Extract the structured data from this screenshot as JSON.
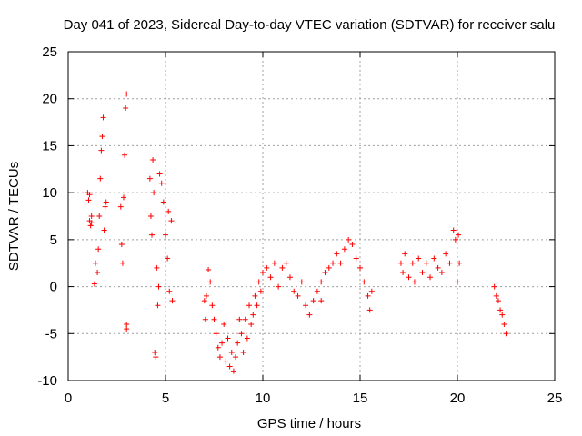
{
  "chart_data": {
    "type": "scatter",
    "title": "Day 041 of 2023, Sidereal Day-to-day VTEC variation (SDTVAR) for receiver salu",
    "xlabel": "GPS time / hours",
    "ylabel": "SDTVAR / TECUs",
    "xlim": [
      0,
      25
    ],
    "ylim": [
      -10,
      25
    ],
    "xticks": [
      "0",
      "5",
      "10",
      "15",
      "20",
      "25"
    ],
    "yticks": [
      "-10",
      "-5",
      "0",
      "5",
      "10",
      "15",
      "20",
      "25"
    ],
    "grid": true,
    "marker": "+",
    "color": "#ff0000",
    "series": [
      {
        "name": "SDTVAR",
        "values": [
          [
            1.0,
            10.0
          ],
          [
            1.05,
            9.2
          ],
          [
            1.1,
            9.8
          ],
          [
            1.1,
            7.0
          ],
          [
            1.15,
            6.5
          ],
          [
            1.2,
            6.8
          ],
          [
            1.2,
            7.5
          ],
          [
            1.35,
            0.3
          ],
          [
            1.4,
            2.5
          ],
          [
            1.5,
            1.5
          ],
          [
            1.55,
            4.0
          ],
          [
            1.6,
            7.5
          ],
          [
            1.65,
            11.5
          ],
          [
            1.7,
            14.5
          ],
          [
            1.75,
            16.0
          ],
          [
            1.8,
            18.0
          ],
          [
            1.85,
            6.0
          ],
          [
            1.9,
            8.5
          ],
          [
            1.95,
            9.0
          ],
          [
            2.7,
            8.5
          ],
          [
            2.75,
            4.5
          ],
          [
            2.8,
            2.5
          ],
          [
            2.85,
            9.5
          ],
          [
            2.9,
            14.0
          ],
          [
            2.95,
            19.0
          ],
          [
            3.0,
            20.5
          ],
          [
            3.0,
            -4.5
          ],
          [
            3.0,
            -4.0
          ],
          [
            4.2,
            11.5
          ],
          [
            4.25,
            7.5
          ],
          [
            4.3,
            5.5
          ],
          [
            4.35,
            13.5
          ],
          [
            4.4,
            10.0
          ],
          [
            4.45,
            -7.0
          ],
          [
            4.5,
            -7.5
          ],
          [
            4.55,
            2.0
          ],
          [
            4.6,
            -2.0
          ],
          [
            4.65,
            0.0
          ],
          [
            4.7,
            12.0
          ],
          [
            4.8,
            11.0
          ],
          [
            4.9,
            9.0
          ],
          [
            5.0,
            5.5
          ],
          [
            5.1,
            3.0
          ],
          [
            5.15,
            8.0
          ],
          [
            5.2,
            -0.5
          ],
          [
            5.3,
            7.0
          ],
          [
            5.35,
            -1.5
          ],
          [
            7.0,
            -1.5
          ],
          [
            7.05,
            -3.5
          ],
          [
            7.1,
            -1.0
          ],
          [
            7.2,
            1.8
          ],
          [
            7.3,
            0.5
          ],
          [
            7.4,
            -2.0
          ],
          [
            7.5,
            -3.5
          ],
          [
            7.6,
            -5.0
          ],
          [
            7.7,
            -6.5
          ],
          [
            7.8,
            -7.5
          ],
          [
            7.9,
            -6.0
          ],
          [
            8.0,
            -4.0
          ],
          [
            8.1,
            -8.0
          ],
          [
            8.2,
            -5.5
          ],
          [
            8.3,
            -8.5
          ],
          [
            8.4,
            -7.0
          ],
          [
            8.5,
            -9.0
          ],
          [
            8.6,
            -7.5
          ],
          [
            8.7,
            -6.0
          ],
          [
            8.8,
            -3.5
          ],
          [
            8.9,
            -5.0
          ],
          [
            9.0,
            -7.0
          ],
          [
            9.1,
            -3.5
          ],
          [
            9.2,
            -5.5
          ],
          [
            9.3,
            -2.0
          ],
          [
            9.4,
            -4.0
          ],
          [
            9.5,
            -3.0
          ],
          [
            9.6,
            -1.0
          ],
          [
            9.7,
            -2.0
          ],
          [
            9.8,
            0.5
          ],
          [
            9.9,
            -0.5
          ],
          [
            10.0,
            1.5
          ],
          [
            10.2,
            2.0
          ],
          [
            10.4,
            1.0
          ],
          [
            10.6,
            2.5
          ],
          [
            10.8,
            0.0
          ],
          [
            11.0,
            2.0
          ],
          [
            11.2,
            2.5
          ],
          [
            11.4,
            1.0
          ],
          [
            11.6,
            -0.5
          ],
          [
            11.8,
            -1.0
          ],
          [
            12.0,
            0.5
          ],
          [
            12.2,
            -2.0
          ],
          [
            12.4,
            -3.0
          ],
          [
            12.6,
            -1.5
          ],
          [
            12.8,
            -0.5
          ],
          [
            13.0,
            0.5
          ],
          [
            13.0,
            -1.5
          ],
          [
            13.2,
            1.5
          ],
          [
            13.4,
            2.0
          ],
          [
            13.6,
            2.5
          ],
          [
            13.8,
            3.5
          ],
          [
            14.0,
            2.5
          ],
          [
            14.2,
            4.0
          ],
          [
            14.4,
            5.0
          ],
          [
            14.6,
            4.5
          ],
          [
            14.8,
            3.0
          ],
          [
            15.0,
            2.0
          ],
          [
            15.2,
            0.5
          ],
          [
            15.4,
            -1.0
          ],
          [
            15.5,
            -2.5
          ],
          [
            15.6,
            -0.5
          ],
          [
            17.1,
            2.5
          ],
          [
            17.2,
            1.5
          ],
          [
            17.3,
            3.5
          ],
          [
            17.5,
            1.0
          ],
          [
            17.7,
            2.5
          ],
          [
            17.8,
            0.5
          ],
          [
            18.0,
            3.0
          ],
          [
            18.2,
            1.5
          ],
          [
            18.4,
            2.5
          ],
          [
            18.6,
            1.0
          ],
          [
            18.8,
            3.0
          ],
          [
            19.0,
            2.0
          ],
          [
            19.2,
            1.5
          ],
          [
            19.4,
            3.5
          ],
          [
            19.6,
            2.5
          ],
          [
            19.8,
            6.0
          ],
          [
            19.9,
            5.0
          ],
          [
            20.0,
            0.5
          ],
          [
            20.05,
            5.5
          ],
          [
            20.1,
            2.5
          ],
          [
            21.9,
            0.0
          ],
          [
            22.0,
            -1.0
          ],
          [
            22.1,
            -1.5
          ],
          [
            22.2,
            -2.5
          ],
          [
            22.3,
            -3.0
          ],
          [
            22.4,
            -4.0
          ],
          [
            22.5,
            -5.0
          ]
        ]
      }
    ]
  }
}
